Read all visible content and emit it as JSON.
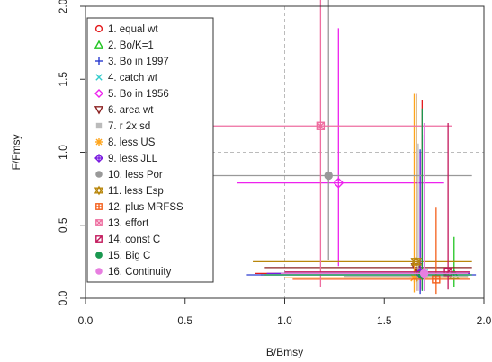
{
  "chart_data": {
    "type": "scatter",
    "xlabel": "B/Bmsy",
    "ylabel": "F/Fmsy",
    "xlim": [
      0,
      2
    ],
    "ylim": [
      0,
      2
    ],
    "x_ticks": [
      "0.0",
      "0.5",
      "1.0",
      "1.5",
      "2.0"
    ],
    "y_ticks": [
      "0.0",
      "0.5",
      "1.0",
      "1.5",
      "2.0"
    ],
    "reference_lines": {
      "x": 1.0,
      "y": 1.0,
      "style": "dashed",
      "color": "#bbbbbb"
    },
    "legend_position": "top-left",
    "series": [
      {
        "name": "1. equal wt",
        "color": "#e41a1c",
        "marker": "circle",
        "x": 1.69,
        "y": 0.17,
        "x_range": [
          0.85,
          1.93
        ],
        "y_range": [
          0.06,
          1.36
        ]
      },
      {
        "name": "2. Bo/K=1",
        "color": "#22c422",
        "marker": "triangle",
        "x": 1.85,
        "y": 0.16,
        "x_range": [
          0.88,
          1.93
        ],
        "y_range": [
          0.08,
          0.42
        ]
      },
      {
        "name": "3. Bo in 1997",
        "color": "#2a3acf",
        "marker": "plus",
        "x": 1.68,
        "y": 0.16,
        "x_range": [
          0.81,
          1.96
        ],
        "y_range": [
          0.03,
          1.02
        ]
      },
      {
        "name": "4. catch wt",
        "color": "#33cccc",
        "marker": "cross",
        "x": 1.7,
        "y": 0.17,
        "x_range": [
          0.95,
          1.92
        ],
        "y_range": [
          0.05,
          1.12
        ]
      },
      {
        "name": "5. Bo in 1956",
        "color": "#ee22ee",
        "marker": "diamond",
        "x": 1.27,
        "y": 0.79,
        "x_range": [
          0.76,
          1.8
        ],
        "y_range": [
          0.22,
          1.85
        ]
      },
      {
        "name": "6. area wt",
        "color": "#8b2020",
        "marker": "triangle-down",
        "x": 1.66,
        "y": 0.21,
        "x_range": [
          0.9,
          1.94
        ],
        "y_range": [
          0.05,
          1.4
        ]
      },
      {
        "name": "7. r 2x sd",
        "color": "#bbbbbb",
        "marker": "square",
        "x": 1.67,
        "y": 0.15,
        "x_range": [
          1.3,
          1.92
        ],
        "y_range": [
          0.05,
          1.06
        ]
      },
      {
        "name": "8. less US",
        "color": "#ffa41a",
        "marker": "asterisk",
        "x": 1.65,
        "y": 0.14,
        "x_range": [
          1.0,
          1.92
        ],
        "y_range": [
          0.04,
          1.4
        ]
      },
      {
        "name": "9. less JLL",
        "color": "#7a1be0",
        "marker": "diamond-plus",
        "x": 1.68,
        "y": 0.17,
        "x_range": [
          0.91,
          1.93
        ],
        "y_range": [
          0.05,
          1.0
        ]
      },
      {
        "name": "10. less Por",
        "color": "#999999",
        "marker": "dot",
        "x": 1.22,
        "y": 0.84,
        "x_range": [
          0.46,
          1.94
        ],
        "y_range": [
          0.26,
          2.1
        ]
      },
      {
        "name": "11. less Esp",
        "color": "#b8860b",
        "marker": "star",
        "x": 1.66,
        "y": 0.25,
        "x_range": [
          0.84,
          1.94
        ],
        "y_range": [
          0.09,
          1.38
        ]
      },
      {
        "name": "12. plus MRFSS",
        "color": "#f4611d",
        "marker": "square-plus",
        "x": 1.76,
        "y": 0.13,
        "x_range": [
          1.04,
          1.93
        ],
        "y_range": [
          0.03,
          0.62
        ]
      },
      {
        "name": "13. effort",
        "color": "#ee6ea0",
        "marker": "square-cross",
        "x": 1.18,
        "y": 1.18,
        "x_range": [
          0.5,
          1.84
        ],
        "y_range": [
          0.08,
          2.2
        ]
      },
      {
        "name": "14. const C",
        "color": "#c2185b",
        "marker": "square-diag",
        "x": 1.82,
        "y": 0.18,
        "x_range": [
          1.0,
          1.93
        ],
        "y_range": [
          0.06,
          1.2
        ]
      },
      {
        "name": "15. Big C",
        "color": "#1a9850",
        "marker": "filled-circle",
        "x": 1.69,
        "y": 0.16,
        "x_range": [
          0.9,
          1.94
        ],
        "y_range": [
          0.05,
          1.3
        ]
      },
      {
        "name": "16. Continuity",
        "color": "#e77ee0",
        "marker": "dot",
        "x": 1.7,
        "y": 0.17,
        "x_range": [
          0.98,
          1.92
        ],
        "y_range": [
          0.05,
          1.2
        ]
      }
    ]
  }
}
